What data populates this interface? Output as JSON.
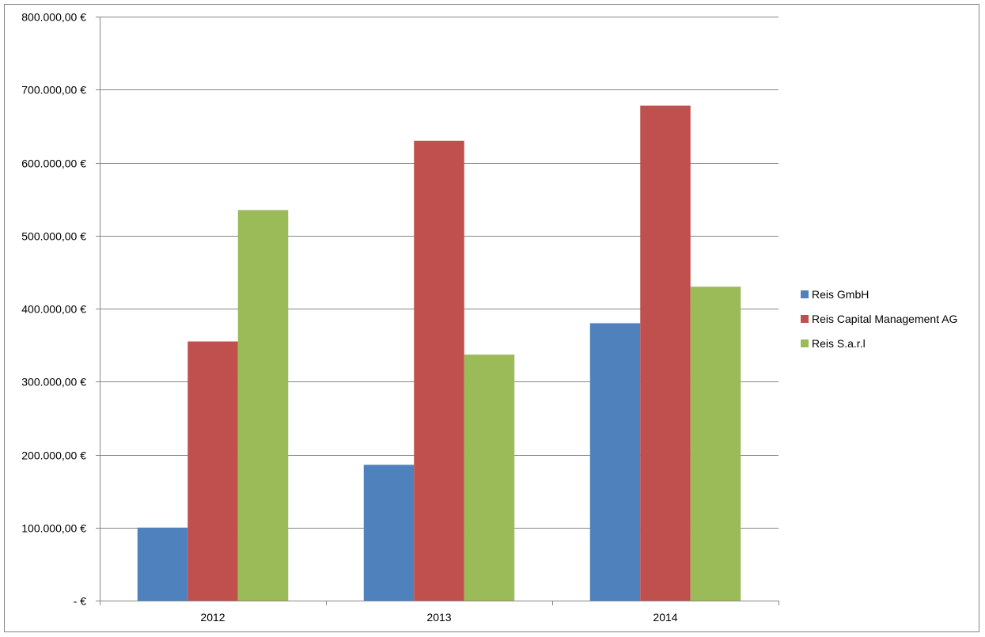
{
  "chart_data": {
    "type": "bar",
    "categories": [
      "2012",
      "2013",
      "2014"
    ],
    "series": [
      {
        "name": "Reis GmbH",
        "color": "#4f81bd",
        "values": [
          100000,
          186000,
          380000
        ]
      },
      {
        "name": "Reis Capital Management AG",
        "color": "#c0504d",
        "values": [
          355000,
          630000,
          678000
        ]
      },
      {
        "name": "Reis S.a.r.l",
        "color": "#9bbb59",
        "values": [
          535000,
          337000,
          430000
        ]
      }
    ],
    "ylim": [
      0,
      800000
    ],
    "yticks": [
      0,
      100000,
      200000,
      300000,
      400000,
      500000,
      600000,
      700000,
      800000
    ],
    "ytick_labels": [
      "-  €",
      "100.000,00 €",
      "200.000,00 €",
      "300.000,00 €",
      "400.000,00 €",
      "500.000,00 €",
      "600.000,00 €",
      "700.000,00 €",
      "800.000,00 €"
    ],
    "grid": true,
    "legend_position": "right",
    "gridline_color": "#868686",
    "axis_color": "#868686"
  }
}
